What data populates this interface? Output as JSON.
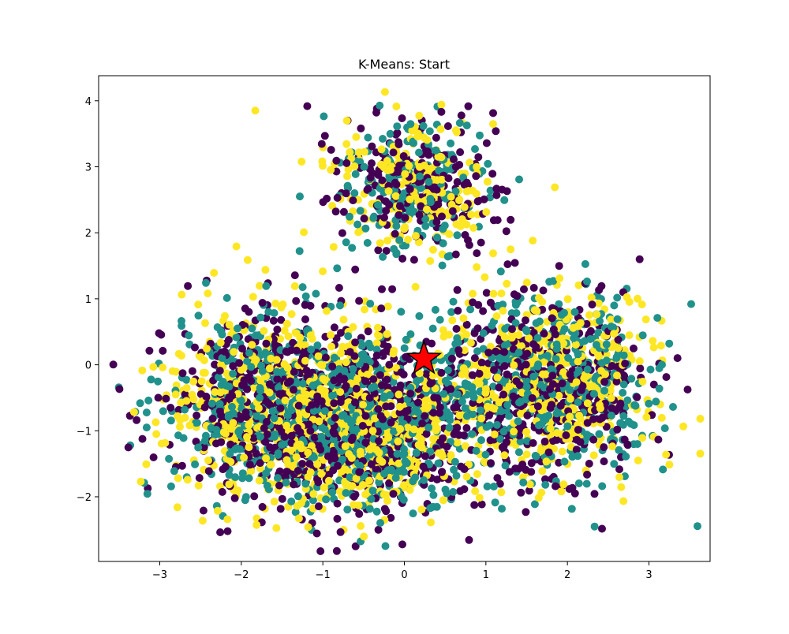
{
  "chart_data": {
    "type": "scatter",
    "title": "K-Means: Start",
    "xlabel": "",
    "ylabel": "",
    "xlim": [
      -3.75,
      3.75
    ],
    "ylim": [
      -2.98,
      4.38
    ],
    "xticks": [
      -3,
      -2,
      -1,
      0,
      1,
      2,
      3
    ],
    "yticks": [
      -2,
      -1,
      0,
      1,
      2,
      3,
      4
    ],
    "xtick_labels": [
      "−3",
      "−2",
      "−1",
      "0",
      "1",
      "2",
      "3"
    ],
    "ytick_labels": [
      "−2",
      "−1",
      "0",
      "1",
      "2",
      "3",
      "4"
    ],
    "grid": false,
    "legend": "none",
    "cluster_colors": [
      "#440154",
      "#21918c",
      "#fde725"
    ],
    "approx_point_count": 4500,
    "point_groups": [
      {
        "name": "",
        "cx": -1.5,
        "cy": -0.6,
        "sx": 0.75,
        "sy": 0.75,
        "weight": 0.34
      },
      {
        "name": "",
        "cx": 0.1,
        "cy": 2.75,
        "sx": 0.5,
        "sy": 0.5,
        "weight": 0.14
      },
      {
        "name": "",
        "cx": 1.7,
        "cy": -0.3,
        "sx": 0.7,
        "sy": 0.75,
        "weight": 0.3
      },
      {
        "name": "",
        "cx": -0.3,
        "cy": -1.0,
        "sx": 0.6,
        "sy": 0.6,
        "weight": 0.22
      }
    ],
    "annotated_points": [
      {
        "name": "",
        "x": 0.24,
        "y": 0.09,
        "marker": "star",
        "color": "#ff0000",
        "edge_color": "#000000"
      }
    ]
  }
}
